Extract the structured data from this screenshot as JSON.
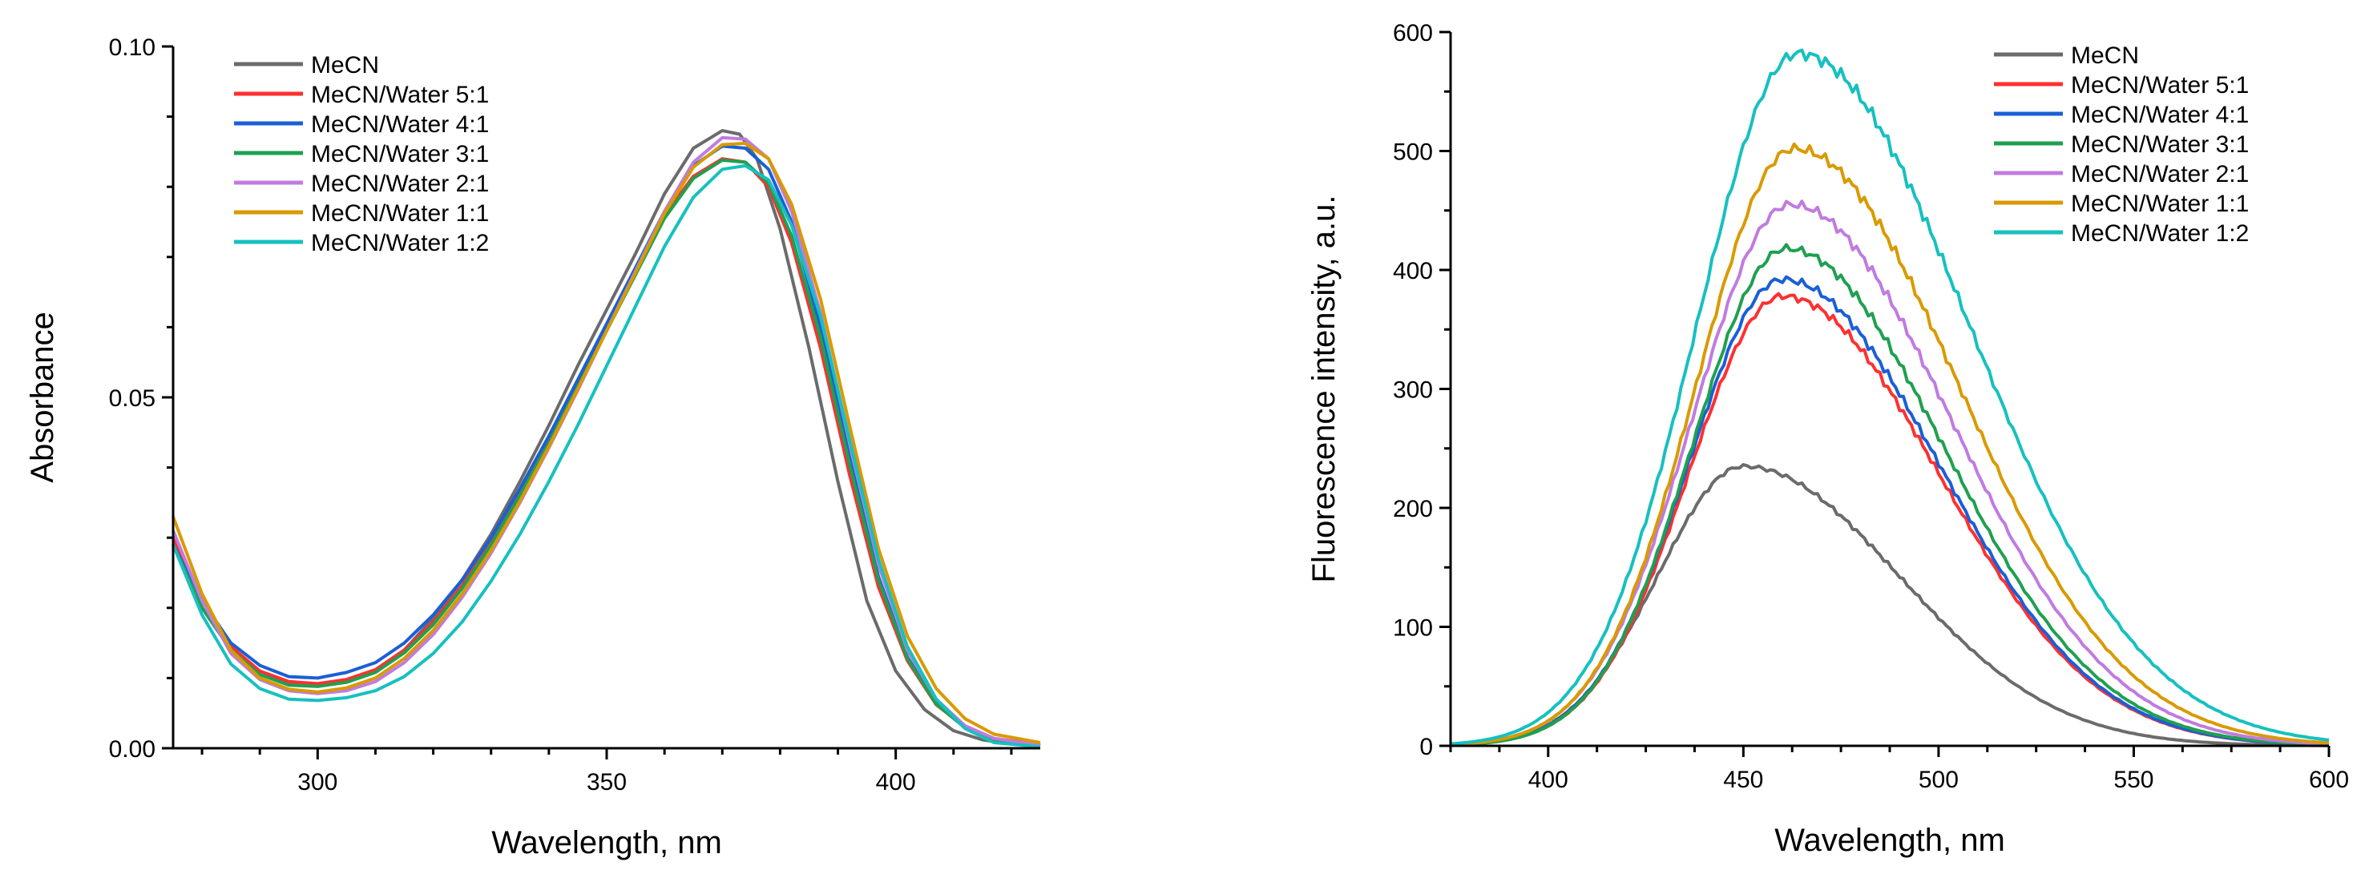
{
  "chart_data": [
    {
      "type": "line",
      "title": "",
      "xlabel": "Wavelength, nm",
      "ylabel": "Absorbance",
      "xlim": [
        275,
        425
      ],
      "ylim": [
        0.0,
        0.1
      ],
      "xticks": [
        300,
        350,
        400
      ],
      "xtick_labels": [
        "300",
        "350",
        "400"
      ],
      "yticks": [
        0.0,
        0.05,
        0.1
      ],
      "ytick_labels": [
        "0.00",
        "0.05",
        "0.10"
      ],
      "grid": false,
      "legend_position": "top-left",
      "series": [
        {
          "name": "MeCN",
          "color": "#6b6b6b",
          "points": [
            [
              275,
              0.029
            ],
            [
              280,
              0.02
            ],
            [
              285,
              0.014
            ],
            [
              290,
              0.0105
            ],
            [
              295,
              0.0092
            ],
            [
              300,
              0.009
            ],
            [
              305,
              0.0095
            ],
            [
              310,
              0.011
            ],
            [
              315,
              0.014
            ],
            [
              320,
              0.0185
            ],
            [
              325,
              0.024
            ],
            [
              330,
              0.0305
            ],
            [
              335,
              0.038
            ],
            [
              340,
              0.046
            ],
            [
              345,
              0.0545
            ],
            [
              350,
              0.0625
            ],
            [
              355,
              0.0705
            ],
            [
              360,
              0.079
            ],
            [
              365,
              0.0855
            ],
            [
              370,
              0.088
            ],
            [
              373,
              0.0875
            ],
            [
              376,
              0.084
            ],
            [
              380,
              0.074
            ],
            [
              385,
              0.057
            ],
            [
              390,
              0.038
            ],
            [
              395,
              0.021
            ],
            [
              400,
              0.011
            ],
            [
              405,
              0.0055
            ],
            [
              410,
              0.0025
            ],
            [
              415,
              0.0012
            ],
            [
              420,
              0.0006
            ],
            [
              425,
              0.0003
            ]
          ]
        },
        {
          "name": "MeCN/Water 5:1",
          "color": "#ff3030",
          "points": [
            [
              275,
              0.03
            ],
            [
              280,
              0.021
            ],
            [
              285,
              0.0145
            ],
            [
              290,
              0.011
            ],
            [
              295,
              0.0095
            ],
            [
              300,
              0.0092
            ],
            [
              305,
              0.0098
            ],
            [
              310,
              0.0112
            ],
            [
              315,
              0.014
            ],
            [
              320,
              0.018
            ],
            [
              325,
              0.0232
            ],
            [
              330,
              0.0295
            ],
            [
              335,
              0.0365
            ],
            [
              340,
              0.044
            ],
            [
              345,
              0.052
            ],
            [
              350,
              0.06
            ],
            [
              355,
              0.068
            ],
            [
              360,
              0.076
            ],
            [
              365,
              0.0815
            ],
            [
              370,
              0.084
            ],
            [
              374,
              0.0835
            ],
            [
              378,
              0.08
            ],
            [
              382,
              0.072
            ],
            [
              387,
              0.057
            ],
            [
              392,
              0.039
            ],
            [
              397,
              0.023
            ],
            [
              402,
              0.0125
            ],
            [
              407,
              0.0062
            ],
            [
              412,
              0.003
            ],
            [
              417,
              0.0014
            ],
            [
              425,
              0.0005
            ]
          ]
        },
        {
          "name": "MeCN/Water 4:1",
          "color": "#1a5fd6",
          "points": [
            [
              275,
              0.029
            ],
            [
              280,
              0.021
            ],
            [
              285,
              0.015
            ],
            [
              290,
              0.0118
            ],
            [
              295,
              0.0102
            ],
            [
              300,
              0.01
            ],
            [
              305,
              0.0108
            ],
            [
              310,
              0.0122
            ],
            [
              315,
              0.015
            ],
            [
              320,
              0.019
            ],
            [
              325,
              0.024
            ],
            [
              330,
              0.03
            ],
            [
              335,
              0.037
            ],
            [
              340,
              0.0445
            ],
            [
              345,
              0.0525
            ],
            [
              350,
              0.0605
            ],
            [
              355,
              0.0685
            ],
            [
              360,
              0.0765
            ],
            [
              365,
              0.083
            ],
            [
              370,
              0.0858
            ],
            [
              374,
              0.0855
            ],
            [
              378,
              0.0825
            ],
            [
              382,
              0.075
            ],
            [
              387,
              0.06
            ],
            [
              392,
              0.0415
            ],
            [
              397,
              0.0245
            ],
            [
              402,
              0.013
            ],
            [
              407,
              0.0065
            ],
            [
              412,
              0.003
            ],
            [
              417,
              0.0013
            ],
            [
              425,
              0.0004
            ]
          ]
        },
        {
          "name": "MeCN/Water 3:1",
          "color": "#1fa050",
          "points": [
            [
              275,
              0.029
            ],
            [
              280,
              0.02
            ],
            [
              285,
              0.014
            ],
            [
              290,
              0.0105
            ],
            [
              295,
              0.009
            ],
            [
              300,
              0.0088
            ],
            [
              305,
              0.0094
            ],
            [
              310,
              0.0108
            ],
            [
              315,
              0.0136
            ],
            [
              320,
              0.0176
            ],
            [
              325,
              0.0228
            ],
            [
              330,
              0.029
            ],
            [
              335,
              0.036
            ],
            [
              340,
              0.0435
            ],
            [
              345,
              0.0515
            ],
            [
              350,
              0.0595
            ],
            [
              355,
              0.0675
            ],
            [
              360,
              0.0755
            ],
            [
              365,
              0.0812
            ],
            [
              370,
              0.0838
            ],
            [
              374,
              0.0835
            ],
            [
              378,
              0.0805
            ],
            [
              382,
              0.073
            ],
            [
              387,
              0.0585
            ],
            [
              392,
              0.0405
            ],
            [
              397,
              0.024
            ],
            [
              402,
              0.0128
            ],
            [
              407,
              0.0063
            ],
            [
              412,
              0.0029
            ],
            [
              417,
              0.0013
            ],
            [
              425,
              0.0004
            ]
          ]
        },
        {
          "name": "MeCN/Water 2:1",
          "color": "#c07be0",
          "points": [
            [
              275,
              0.031
            ],
            [
              280,
              0.021
            ],
            [
              285,
              0.0135
            ],
            [
              290,
              0.0098
            ],
            [
              295,
              0.0082
            ],
            [
              300,
              0.0078
            ],
            [
              305,
              0.0082
            ],
            [
              310,
              0.0095
            ],
            [
              315,
              0.0122
            ],
            [
              320,
              0.0162
            ],
            [
              325,
              0.0215
            ],
            [
              330,
              0.0278
            ],
            [
              335,
              0.035
            ],
            [
              340,
              0.0428
            ],
            [
              345,
              0.051
            ],
            [
              350,
              0.0595
            ],
            [
              355,
              0.068
            ],
            [
              360,
              0.0765
            ],
            [
              365,
              0.0835
            ],
            [
              370,
              0.087
            ],
            [
              374,
              0.0868
            ],
            [
              378,
              0.084
            ],
            [
              382,
              0.0765
            ],
            [
              387,
              0.062
            ],
            [
              392,
              0.0435
            ],
            [
              397,
              0.0262
            ],
            [
              402,
              0.014
            ],
            [
              407,
              0.007
            ],
            [
              412,
              0.0032
            ],
            [
              417,
              0.0014
            ],
            [
              425,
              0.0004
            ]
          ]
        },
        {
          "name": "MeCN/Water 1:1",
          "color": "#d99a00",
          "points": [
            [
              275,
              0.033
            ],
            [
              280,
              0.022
            ],
            [
              285,
              0.014
            ],
            [
              290,
              0.01
            ],
            [
              295,
              0.0084
            ],
            [
              300,
              0.008
            ],
            [
              305,
              0.0086
            ],
            [
              310,
              0.01
            ],
            [
              315,
              0.0128
            ],
            [
              320,
              0.0168
            ],
            [
              325,
              0.022
            ],
            [
              330,
              0.0282
            ],
            [
              335,
              0.0352
            ],
            [
              340,
              0.043
            ],
            [
              345,
              0.0512
            ],
            [
              350,
              0.0595
            ],
            [
              355,
              0.0678
            ],
            [
              360,
              0.0762
            ],
            [
              365,
              0.0828
            ],
            [
              370,
              0.086
            ],
            [
              374,
              0.0862
            ],
            [
              378,
              0.084
            ],
            [
              382,
              0.0775
            ],
            [
              387,
              0.064
            ],
            [
              392,
              0.046
            ],
            [
              397,
              0.0285
            ],
            [
              402,
              0.016
            ],
            [
              407,
              0.0085
            ],
            [
              412,
              0.0042
            ],
            [
              417,
              0.002
            ],
            [
              425,
              0.0008
            ]
          ]
        },
        {
          "name": "MeCN/Water 1:2",
          "color": "#17c0c0",
          "points": [
            [
              275,
              0.029
            ],
            [
              280,
              0.019
            ],
            [
              285,
              0.012
            ],
            [
              290,
              0.0085
            ],
            [
              295,
              0.007
            ],
            [
              300,
              0.0068
            ],
            [
              305,
              0.0072
            ],
            [
              310,
              0.0082
            ],
            [
              315,
              0.0102
            ],
            [
              320,
              0.0135
            ],
            [
              325,
              0.018
            ],
            [
              330,
              0.0238
            ],
            [
              335,
              0.0305
            ],
            [
              340,
              0.038
            ],
            [
              345,
              0.046
            ],
            [
              350,
              0.0545
            ],
            [
              355,
              0.063
            ],
            [
              360,
              0.0715
            ],
            [
              365,
              0.0785
            ],
            [
              370,
              0.0825
            ],
            [
              374,
              0.083
            ],
            [
              378,
              0.081
            ],
            [
              382,
              0.0745
            ],
            [
              387,
              0.0615
            ],
            [
              392,
              0.044
            ],
            [
              397,
              0.027
            ],
            [
              402,
              0.0145
            ],
            [
              407,
              0.007
            ],
            [
              412,
              0.0028
            ],
            [
              417,
              0.0008
            ],
            [
              425,
              0.0002
            ]
          ]
        }
      ]
    },
    {
      "type": "line",
      "title": "",
      "xlabel": "Wavelength, nm",
      "ylabel": "Fluorescence intensity, a.u.",
      "xlim": [
        375,
        600
      ],
      "ylim": [
        0,
        600
      ],
      "xticks": [
        400,
        450,
        500,
        550,
        600
      ],
      "xtick_labels": [
        "400",
        "450",
        "500",
        "550",
        "600"
      ],
      "yticks": [
        0,
        100,
        200,
        300,
        400,
        500,
        600
      ],
      "ytick_labels": [
        "0",
        "100",
        "200",
        "300",
        "400",
        "500",
        "600"
      ],
      "grid": false,
      "legend_position": "top-right",
      "series": [
        {
          "name": "MeCN",
          "color": "#6b6b6b",
          "peak_x": 450,
          "peak_y": 235,
          "sigma_left": 22,
          "sigma_right": 40
        },
        {
          "name": "MeCN/Water 5:1",
          "color": "#ff3030",
          "peak_x": 460,
          "peak_y": 378,
          "sigma_left": 24,
          "sigma_right": 40
        },
        {
          "name": "MeCN/Water 4:1",
          "color": "#1a5fd6",
          "peak_x": 460,
          "peak_y": 392,
          "sigma_left": 24,
          "sigma_right": 40
        },
        {
          "name": "MeCN/Water 3:1",
          "color": "#1fa050",
          "peak_x": 461,
          "peak_y": 418,
          "sigma_left": 24,
          "sigma_right": 40
        },
        {
          "name": "MeCN/Water 2:1",
          "color": "#c07be0",
          "peak_x": 462,
          "peak_y": 455,
          "sigma_left": 25,
          "sigma_right": 41
        },
        {
          "name": "MeCN/Water 1:1",
          "color": "#d99a00",
          "peak_x": 463,
          "peak_y": 502,
          "sigma_left": 25,
          "sigma_right": 42
        },
        {
          "name": "MeCN/Water 1:2",
          "color": "#17c0c0",
          "peak_x": 464,
          "peak_y": 582,
          "sigma_left": 26,
          "sigma_right": 44
        }
      ]
    }
  ]
}
